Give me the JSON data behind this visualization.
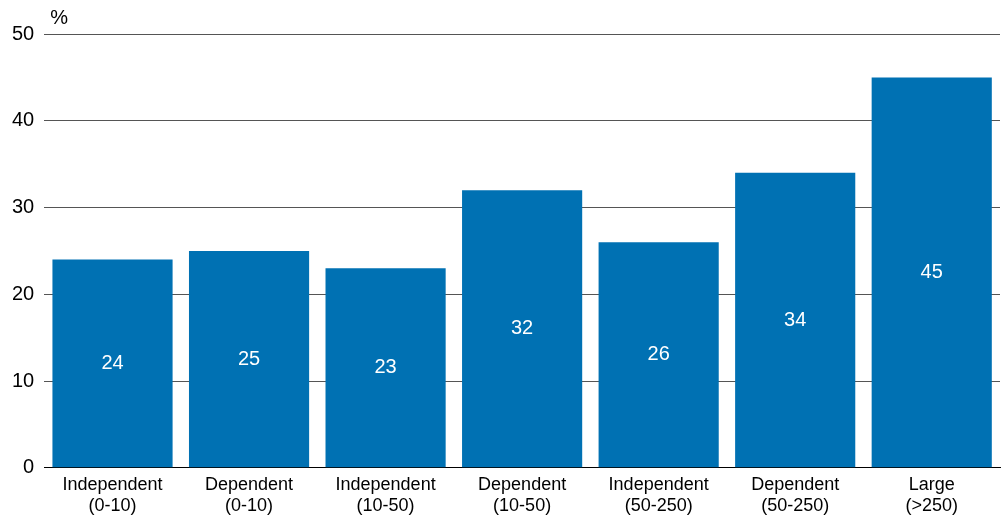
{
  "chart_data": {
    "type": "bar",
    "ylabel": "%",
    "categories": [
      "Independent (0-10)",
      "Dependent (0-10)",
      "Independent (10-50)",
      "Dependent (10-50)",
      "Independent (50-250)",
      "Dependent (50-250)",
      "Large (>250)"
    ],
    "values": [
      24,
      25,
      23,
      32,
      26,
      34,
      45
    ],
    "color": "#0071b3",
    "ylim": [
      0,
      50
    ],
    "yticks": [
      0,
      10,
      20,
      30,
      40,
      50
    ],
    "grid": "y",
    "legend": false,
    "data_labels": true
  }
}
